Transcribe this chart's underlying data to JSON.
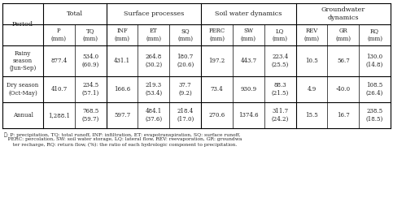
{
  "col_groups": [
    {
      "label": "Total",
      "span": 2
    },
    {
      "label": "Surface processes",
      "span": 3
    },
    {
      "label": "Soil water dynamics",
      "span": 3
    },
    {
      "label": "Groundwater\ndynamics",
      "span": 3
    }
  ],
  "sub_headers": [
    "P\n(mm)",
    "TQ\n(mm)",
    "INF\n(mm)",
    "ET\n(mm)",
    "SQ\n(mm)",
    "PERC\n(mm)",
    "SW\n(mm)",
    "LQ\n(mm)",
    "REV\n(mm)",
    "GR\n(mm)",
    "RQ\n(mm)"
  ],
  "row_labels": [
    "Rainy\nseason\n(Jun-Sep)",
    "Dry season\n(Oct-May)",
    "Annual"
  ],
  "data": [
    [
      "877.4",
      "534.0\n(60.9)",
      "431.1",
      "264.8\n(30.2)",
      "180.7\n(20.6)",
      "197.2",
      "443.7",
      "223.4\n(25.5)",
      "10.5",
      "56.7",
      "130.0\n(14.8)"
    ],
    [
      "410.7",
      "234.5\n(57.1)",
      "166.6",
      "219.3\n(53.4)",
      "37.7\n(9.2)",
      "73.4",
      "930.9",
      "88.3\n(21.5)",
      "4.9",
      "-40.0",
      "108.5\n(26.4)"
    ],
    [
      "1,288.1",
      "768.5\n(59.7)",
      "597.7",
      "484.1\n(37.6)",
      "218.4\n(17.0)",
      "270.6",
      "1374.6",
      "311.7\n(24.2)",
      "15.5",
      "16.7",
      "238.5\n(18.5)"
    ]
  ],
  "footnote_lines": [
    "¢°: P: precipitation, TQ: total runoff, INF: infiltration, ET: evapotranspiration, SQ: surface runoff,",
    "   PERC: percolation, SW: soil water storage, LQ: lateral flow, REV: reevaporation, GR: groundwa",
    "   ter recharge, RQ: return flow, (%): the ratio of each hydrologic component to precipitation."
  ],
  "footnote": "주: P: precipitation, TQ: total runoff, INF: infiltration, ET: evapotranspiration, SQ: surface runoff,\n   PERC: percolation, SW: soil water storage, LQ: lateral flow, REV: reevaporation, GR: groundwa\n   ter recharge, RQ: return flow, (%): the ratio of each hydrologic component to precipitation.",
  "bg": "#ffffff",
  "text_color": "#222222",
  "line_color": "#000000"
}
